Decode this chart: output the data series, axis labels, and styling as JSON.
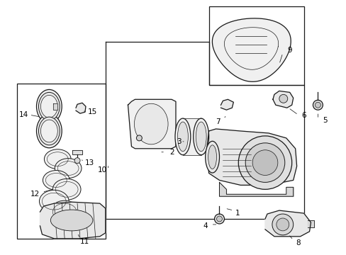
{
  "bg_color": "#ffffff",
  "line_color": "#1a1a1a",
  "label_color": "#000000",
  "fig_width": 4.89,
  "fig_height": 3.6,
  "dpi": 100,
  "font_size": 7.5
}
